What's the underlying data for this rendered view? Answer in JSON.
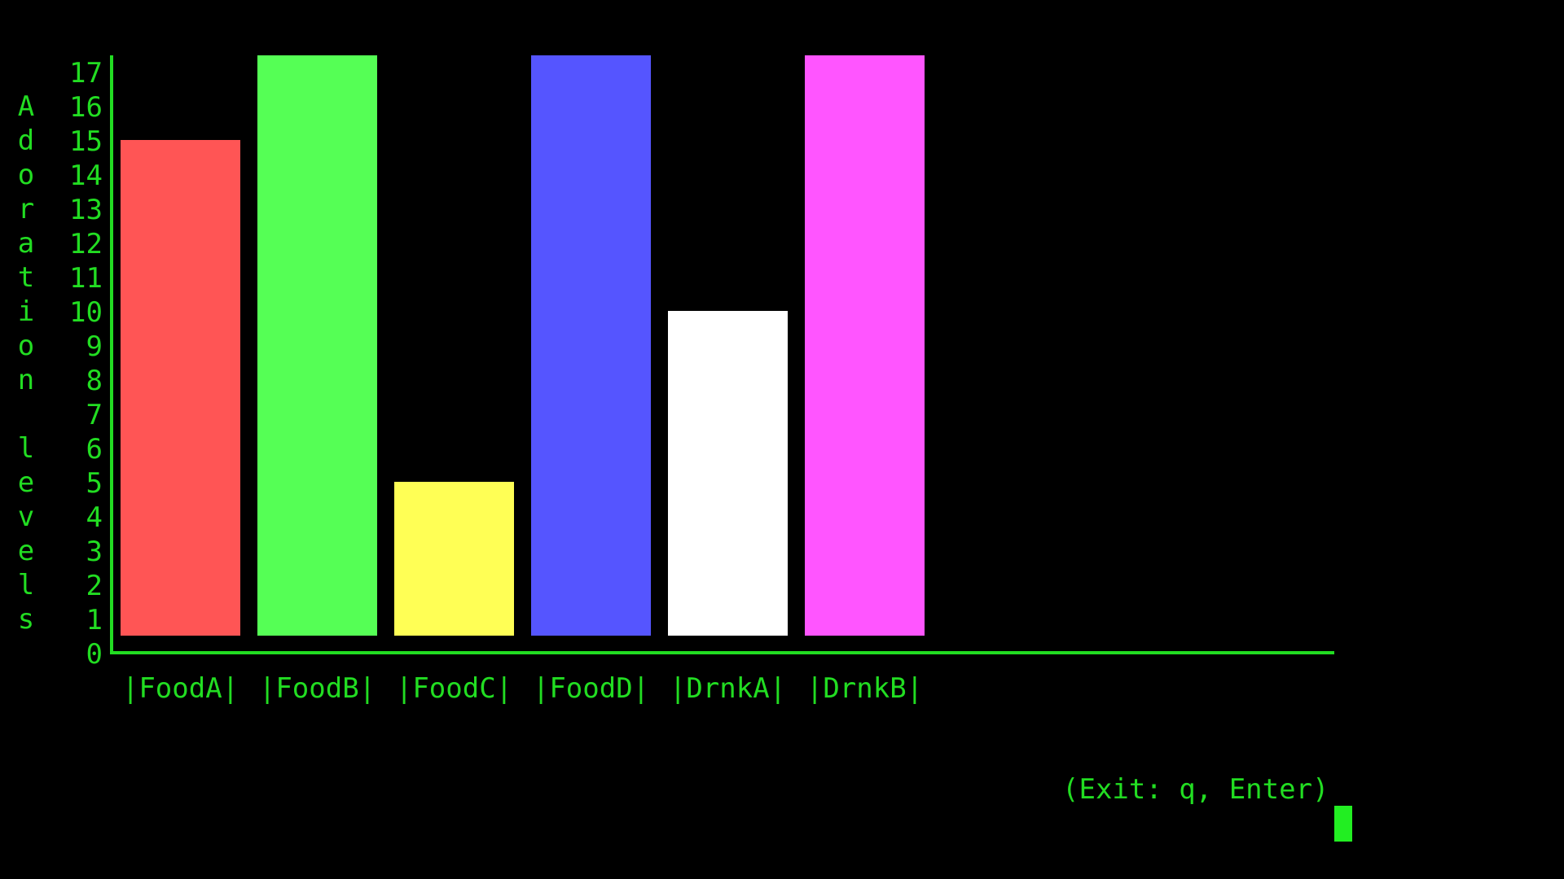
{
  "terminal": {
    "background": "#000000",
    "text_color": "#22dd22",
    "exit_hint": "(Exit: q, Enter)",
    "cursor_color": "#22ee22"
  },
  "chart_data": {
    "type": "bar",
    "categories": [
      "|FoodA|",
      "|FoodB|",
      "|FoodC|",
      "|FoodD|",
      "|DrnkA|",
      "|DrnkB|"
    ],
    "values": [
      15,
      17,
      5,
      17,
      10,
      17
    ],
    "colors": [
      "#ff5555",
      "#55ff55",
      "#ffff55",
      "#5555ff",
      "#ffffff",
      "#ff55ff"
    ],
    "title": "",
    "xlabel": "",
    "ylabel": "Adoration levels",
    "ylim": [
      0,
      17
    ],
    "yticks": [
      0,
      1,
      2,
      3,
      4,
      5,
      6,
      7,
      8,
      9,
      10,
      11,
      12,
      13,
      14,
      15,
      16,
      17
    ],
    "grid": false,
    "legend": "none"
  }
}
